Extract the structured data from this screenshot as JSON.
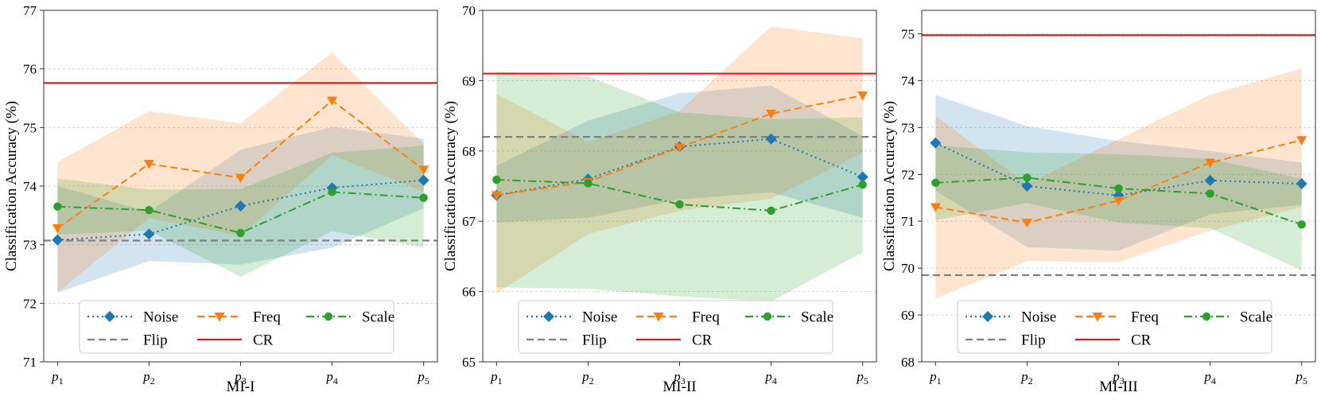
{
  "chart_data": [
    {
      "type": "line",
      "xlabel": "MI-I",
      "ylabel": "Classification Accuracy (%)",
      "ylim": [
        71,
        77
      ],
      "yticks": [
        71,
        72,
        73,
        74,
        75,
        76,
        77
      ],
      "categories": [
        "1",
        "2",
        "3",
        "4",
        "5"
      ],
      "cat_prefix": "p",
      "grid": "horizontal dashed",
      "legend_position": "lower-center",
      "series": [
        {
          "name": "Noise",
          "color": "#1f77b4",
          "marker": "diamond",
          "linestyle": "dotted",
          "values": [
            73.08,
            73.18,
            73.66,
            73.97,
            74.1
          ],
          "band_lower": [
            72.18,
            72.72,
            72.66,
            72.95,
            73.62
          ],
          "band_upper": [
            74.0,
            73.56,
            74.62,
            75.01,
            74.81
          ]
        },
        {
          "name": "Freq",
          "color": "#ff7f0e",
          "marker": "triangle-down",
          "linestyle": "dashed",
          "values": [
            73.28,
            74.38,
            74.14,
            75.46,
            74.28
          ],
          "band_lower": [
            72.19,
            73.45,
            73.15,
            74.53,
            73.9
          ],
          "band_upper": [
            74.41,
            75.28,
            75.07,
            76.28,
            74.72
          ]
        },
        {
          "name": "Scale",
          "color": "#2ca02c",
          "marker": "circle",
          "linestyle": "dashdot",
          "values": [
            73.65,
            73.59,
            73.2,
            73.9,
            73.8
          ],
          "band_lower": [
            73.17,
            73.24,
            72.45,
            73.23,
            72.95
          ],
          "band_upper": [
            74.13,
            73.94,
            73.95,
            74.57,
            74.69
          ]
        },
        {
          "name": "Flip",
          "color": "#808080",
          "linestyle": "dashed",
          "hline": 73.07
        },
        {
          "name": "CR",
          "color": "#e31a1c",
          "linestyle": "solid",
          "hline": 75.76
        }
      ]
    },
    {
      "type": "line",
      "xlabel": "MI-II",
      "ylabel": "Classification Accuracy (%)",
      "ylim": [
        65,
        70
      ],
      "yticks": [
        65,
        66,
        67,
        68,
        69,
        70
      ],
      "categories": [
        "1",
        "2",
        "3",
        "4",
        "5"
      ],
      "cat_prefix": "p",
      "grid": "horizontal dashed",
      "legend_position": "lower-center",
      "series": [
        {
          "name": "Noise",
          "color": "#1f77b4",
          "marker": "diamond",
          "linestyle": "dotted",
          "values": [
            67.37,
            67.6,
            68.06,
            68.17,
            67.63
          ],
          "band_lower": [
            66.98,
            67.05,
            67.31,
            67.41,
            67.05
          ],
          "band_upper": [
            67.79,
            68.43,
            68.82,
            68.93,
            68.21
          ]
        },
        {
          "name": "Freq",
          "color": "#ff7f0e",
          "marker": "triangle-down",
          "linestyle": "dashed",
          "values": [
            67.37,
            67.56,
            68.05,
            68.53,
            68.79
          ],
          "band_lower": [
            65.97,
            66.82,
            67.15,
            67.32,
            67.97
          ],
          "band_upper": [
            68.81,
            68.13,
            68.57,
            69.77,
            69.6
          ]
        },
        {
          "name": "Scale",
          "color": "#2ca02c",
          "marker": "circle",
          "linestyle": "dashdot",
          "values": [
            67.59,
            67.54,
            67.24,
            67.15,
            67.52
          ],
          "band_lower": [
            66.06,
            66.04,
            65.93,
            65.86,
            66.56
          ],
          "band_upper": [
            69.13,
            69.06,
            68.55,
            68.45,
            68.48
          ]
        },
        {
          "name": "Flip",
          "color": "#808080",
          "linestyle": "dashed",
          "hline": 68.2
        },
        {
          "name": "CR",
          "color": "#e31a1c",
          "linestyle": "solid",
          "hline": 69.1
        }
      ]
    },
    {
      "type": "line",
      "xlabel": "MI-III",
      "ylabel": "Classification Accuracy (%)",
      "ylim": [
        68,
        75.5
      ],
      "yticks": [
        68,
        69,
        70,
        71,
        72,
        73,
        74,
        75
      ],
      "categories": [
        "1",
        "2",
        "3",
        "4",
        "5"
      ],
      "cat_prefix": "p",
      "grid": "horizontal dashed",
      "legend_position": "lower-center",
      "series": [
        {
          "name": "Noise",
          "color": "#1f77b4",
          "marker": "diamond",
          "linestyle": "dotted",
          "values": [
            72.67,
            71.75,
            71.55,
            71.87,
            71.8
          ],
          "band_lower": [
            71.65,
            70.45,
            70.37,
            71.15,
            71.35
          ],
          "band_upper": [
            73.69,
            73.03,
            72.71,
            72.5,
            72.25
          ]
        },
        {
          "name": "Freq",
          "color": "#ff7f0e",
          "marker": "triangle-down",
          "linestyle": "dashed",
          "values": [
            71.3,
            70.97,
            71.44,
            72.25,
            72.73
          ],
          "band_lower": [
            69.35,
            70.15,
            70.13,
            70.8,
            71.3
          ],
          "band_upper": [
            73.25,
            71.79,
            72.75,
            73.7,
            74.26
          ]
        },
        {
          "name": "Scale",
          "color": "#2ca02c",
          "marker": "circle",
          "linestyle": "dashdot",
          "values": [
            71.82,
            71.93,
            71.7,
            71.59,
            70.93
          ],
          "band_lower": [
            71.02,
            71.39,
            70.97,
            70.85,
            69.95
          ],
          "band_upper": [
            72.62,
            72.47,
            72.43,
            72.33,
            71.91
          ]
        },
        {
          "name": "Flip",
          "color": "#808080",
          "linestyle": "dashed",
          "hline": 69.85
        },
        {
          "name": "CR",
          "color": "#e31a1c",
          "linestyle": "solid",
          "hline": 74.97
        }
      ]
    }
  ]
}
